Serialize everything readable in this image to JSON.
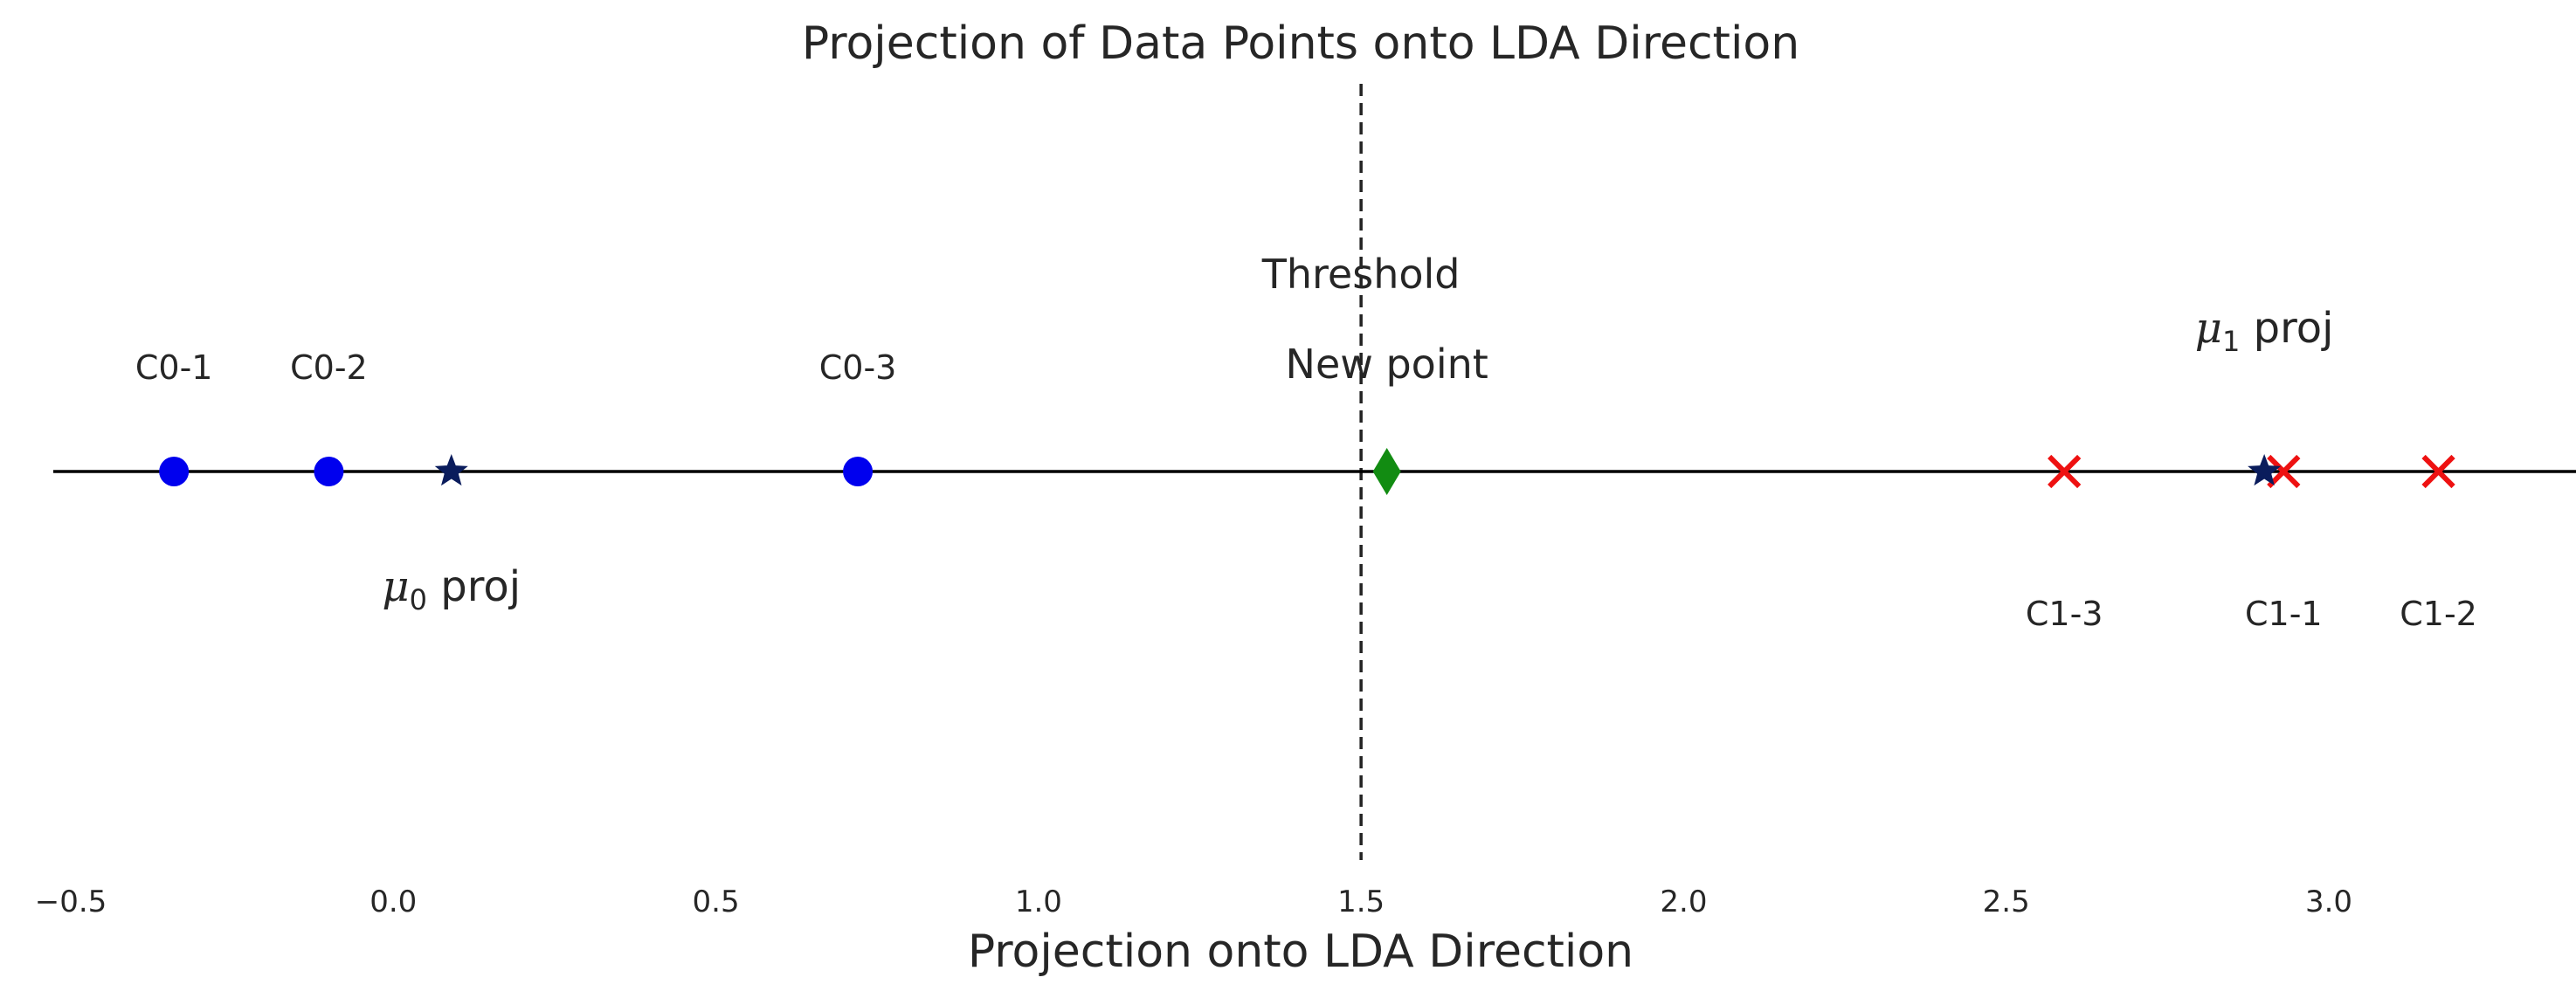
{
  "chart_data": {
    "type": "scatter",
    "title": "Projection of Data Points onto LDA Direction",
    "xlabel": "Projection onto LDA Direction",
    "ylabel": "",
    "xlim": [
      -0.5,
      3.35
    ],
    "grid": false,
    "xticks": [
      -0.5,
      0.0,
      0.5,
      1.0,
      1.5,
      2.0,
      2.5,
      3.0
    ],
    "xtick_labels": [
      "−0.5",
      "0.0",
      "0.5",
      "1.0",
      "1.5",
      "2.0",
      "2.5",
      "3.0"
    ],
    "class0_points": [
      {
        "label": "C0-1",
        "x": -0.34
      },
      {
        "label": "C0-2",
        "x": -0.1
      },
      {
        "label": "C0-3",
        "x": 0.72
      }
    ],
    "class1_points": [
      {
        "label": "C1-1",
        "x": 2.93
      },
      {
        "label": "C1-2",
        "x": 3.17
      },
      {
        "label": "C1-3",
        "x": 2.59
      }
    ],
    "mean_projections": [
      {
        "symbol": "μ",
        "subscript": "0",
        "suffix": " proj",
        "x": 0.09
      },
      {
        "symbol": "μ",
        "subscript": "1",
        "suffix": " proj",
        "x": 2.9
      }
    ],
    "threshold": {
      "label": "Threshold",
      "x": 1.5
    },
    "new_point": {
      "label": "New point",
      "x": 1.54
    },
    "colors": {
      "class0": "#0000ee",
      "class1": "#ee1111",
      "mean_star": "#0a1c5c",
      "new_point": "#128c12",
      "axis_line": "#000000",
      "threshold_line": "#222222"
    }
  }
}
